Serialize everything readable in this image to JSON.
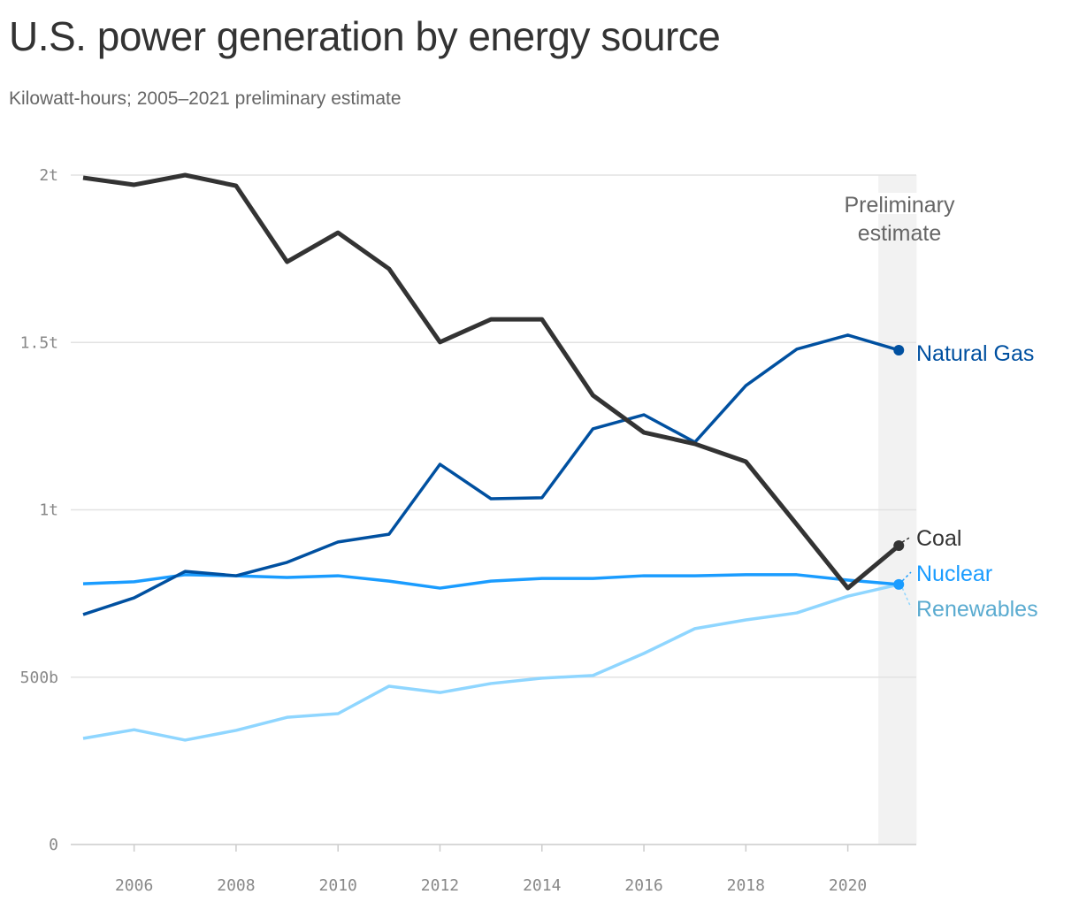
{
  "header": {
    "title": "U.S. power generation by energy source",
    "subtitle": "Kilowatt-hours; 2005–2021 preliminary estimate"
  },
  "chart_data": {
    "type": "line",
    "title": "U.S. power generation by energy source",
    "subtitle": "Kilowatt-hours; 2005–2021 preliminary estimate",
    "x": [
      2005,
      2006,
      2007,
      2008,
      2009,
      2010,
      2011,
      2012,
      2013,
      2014,
      2015,
      2016,
      2017,
      2018,
      2019,
      2020,
      2021
    ],
    "xticks": [
      2006,
      2008,
      2010,
      2012,
      2014,
      2016,
      2018,
      2020
    ],
    "xlim": [
      2005,
      2021.35
    ],
    "ylim": [
      0,
      2000000000000
    ],
    "yticks": [
      {
        "v": 0,
        "label": "0"
      },
      {
        "v": 500000000000,
        "label": "500b"
      },
      {
        "v": 1000000000000,
        "label": "1t"
      },
      {
        "v": 1500000000000,
        "label": "1.5t"
      },
      {
        "v": 2000000000000,
        "label": "2t"
      }
    ],
    "grid": true,
    "annotation": {
      "text_lines": [
        "Preliminary",
        "estimate"
      ],
      "range": [
        2020.6,
        2021.35
      ]
    },
    "series": [
      {
        "name": "Renewables",
        "color": "#8fd6ff",
        "label_color": "#5aabd0",
        "values_t": [
          0.317,
          0.343,
          0.312,
          0.341,
          0.38,
          0.391,
          0.473,
          0.454,
          0.481,
          0.497,
          0.505,
          0.571,
          0.645,
          0.671,
          0.692,
          0.742,
          0.777
        ]
      },
      {
        "name": "Nuclear",
        "color": "#1a9cff",
        "label_color": "#1a9cff",
        "values_t": [
          0.779,
          0.785,
          0.806,
          0.803,
          0.798,
          0.803,
          0.787,
          0.766,
          0.787,
          0.795,
          0.795,
          0.803,
          0.803,
          0.806,
          0.806,
          0.79,
          0.777
        ]
      },
      {
        "name": "Natural Gas",
        "color": "#0050a0",
        "label_color": "#0050a0",
        "values_t": [
          0.687,
          0.737,
          0.816,
          0.803,
          0.843,
          0.904,
          0.927,
          1.136,
          1.033,
          1.036,
          1.242,
          1.284,
          1.202,
          1.371,
          1.48,
          1.522,
          1.477
        ]
      },
      {
        "name": "Coal",
        "color": "#333333",
        "label_color": "#333333",
        "values_t": [
          1.992,
          1.971,
          2.0,
          1.968,
          1.741,
          1.828,
          1.72,
          1.501,
          1.569,
          1.569,
          1.342,
          1.231,
          1.197,
          1.144,
          0.956,
          0.766,
          0.893
        ]
      }
    ]
  }
}
